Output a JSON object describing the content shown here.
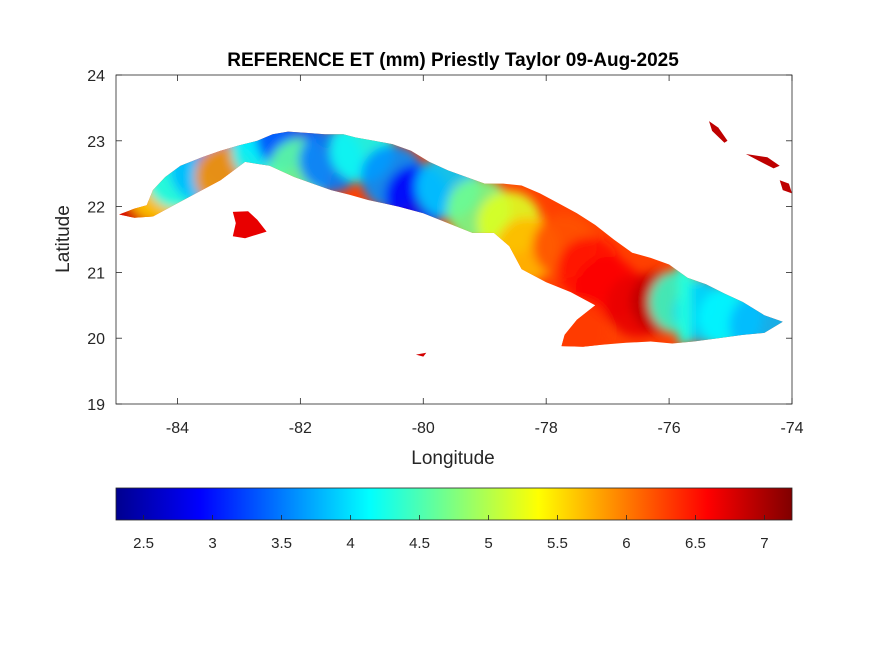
{
  "chart_data": {
    "type": "heatmap",
    "title": "REFERENCE ET (mm) Priestly Taylor 09-Aug-2025",
    "xlabel": "Longitude",
    "ylabel": "Latitude",
    "xlim": [
      -85,
      -74
    ],
    "ylim": [
      19,
      24
    ],
    "xticks": [
      -84,
      -82,
      -80,
      -78,
      -76,
      -74
    ],
    "yticks": [
      19,
      20,
      21,
      22,
      23,
      24
    ],
    "xtick_labels": [
      "-84",
      "-82",
      "-80",
      "-78",
      "-76",
      "-74"
    ],
    "ytick_labels": [
      "19",
      "20",
      "21",
      "22",
      "23",
      "24"
    ],
    "colormap": "jet",
    "colorbar": {
      "location": "bottom",
      "range": [
        2.3,
        7.2
      ],
      "ticks": [
        2.5,
        3,
        3.5,
        4,
        4.5,
        5,
        5.5,
        6,
        6.5,
        7
      ],
      "tick_labels": [
        "2.5",
        "3",
        "3.5",
        "4",
        "4.5",
        "5",
        "5.5",
        "6",
        "6.5",
        "7"
      ]
    },
    "region_samples": [
      {
        "lon": -84.5,
        "lat": 21.95,
        "value": 6.8
      },
      {
        "lon": -84.3,
        "lat": 22.25,
        "value": 5.6
      },
      {
        "lon": -84.0,
        "lat": 22.45,
        "value": 4.2
      },
      {
        "lon": -83.6,
        "lat": 22.55,
        "value": 3.8
      },
      {
        "lon": -83.2,
        "lat": 22.8,
        "value": 3.6
      },
      {
        "lon": -83.2,
        "lat": 22.45,
        "value": 5.9
      },
      {
        "lon": -82.6,
        "lat": 22.85,
        "value": 4.1
      },
      {
        "lon": -82.2,
        "lat": 23.05,
        "value": 3.3
      },
      {
        "lon": -82.0,
        "lat": 22.55,
        "value": 4.6
      },
      {
        "lon": -81.5,
        "lat": 22.7,
        "value": 3.5
      },
      {
        "lon": -81.0,
        "lat": 22.85,
        "value": 4.2
      },
      {
        "lon": -80.5,
        "lat": 22.45,
        "value": 3.6
      },
      {
        "lon": -80.1,
        "lat": 22.15,
        "value": 2.9
      },
      {
        "lon": -79.6,
        "lat": 22.3,
        "value": 3.9
      },
      {
        "lon": -79.1,
        "lat": 21.95,
        "value": 4.7
      },
      {
        "lon": -78.6,
        "lat": 21.75,
        "value": 5.2
      },
      {
        "lon": -78.3,
        "lat": 21.35,
        "value": 5.7
      },
      {
        "lon": -77.7,
        "lat": 21.4,
        "value": 6.2
      },
      {
        "lon": -77.3,
        "lat": 21.05,
        "value": 6.5
      },
      {
        "lon": -77.0,
        "lat": 20.75,
        "value": 6.6
      },
      {
        "lon": -76.5,
        "lat": 20.5,
        "value": 6.7
      },
      {
        "lon": -76.1,
        "lat": 20.55,
        "value": 6.9
      },
      {
        "lon": -75.8,
        "lat": 20.55,
        "value": 4.4
      },
      {
        "lon": -75.4,
        "lat": 20.4,
        "value": 3.9
      },
      {
        "lon": -75.0,
        "lat": 20.3,
        "value": 4.1
      },
      {
        "lon": -74.5,
        "lat": 20.2,
        "value": 3.8
      },
      {
        "lon": -77.5,
        "lat": 20.1,
        "value": 6.3
      },
      {
        "lon": -82.9,
        "lat": 21.75,
        "value": 6.7
      },
      {
        "lon": -75.3,
        "lat": 23.1,
        "value": 6.9
      },
      {
        "lon": -74.3,
        "lat": 22.6,
        "value": 6.9
      }
    ]
  }
}
